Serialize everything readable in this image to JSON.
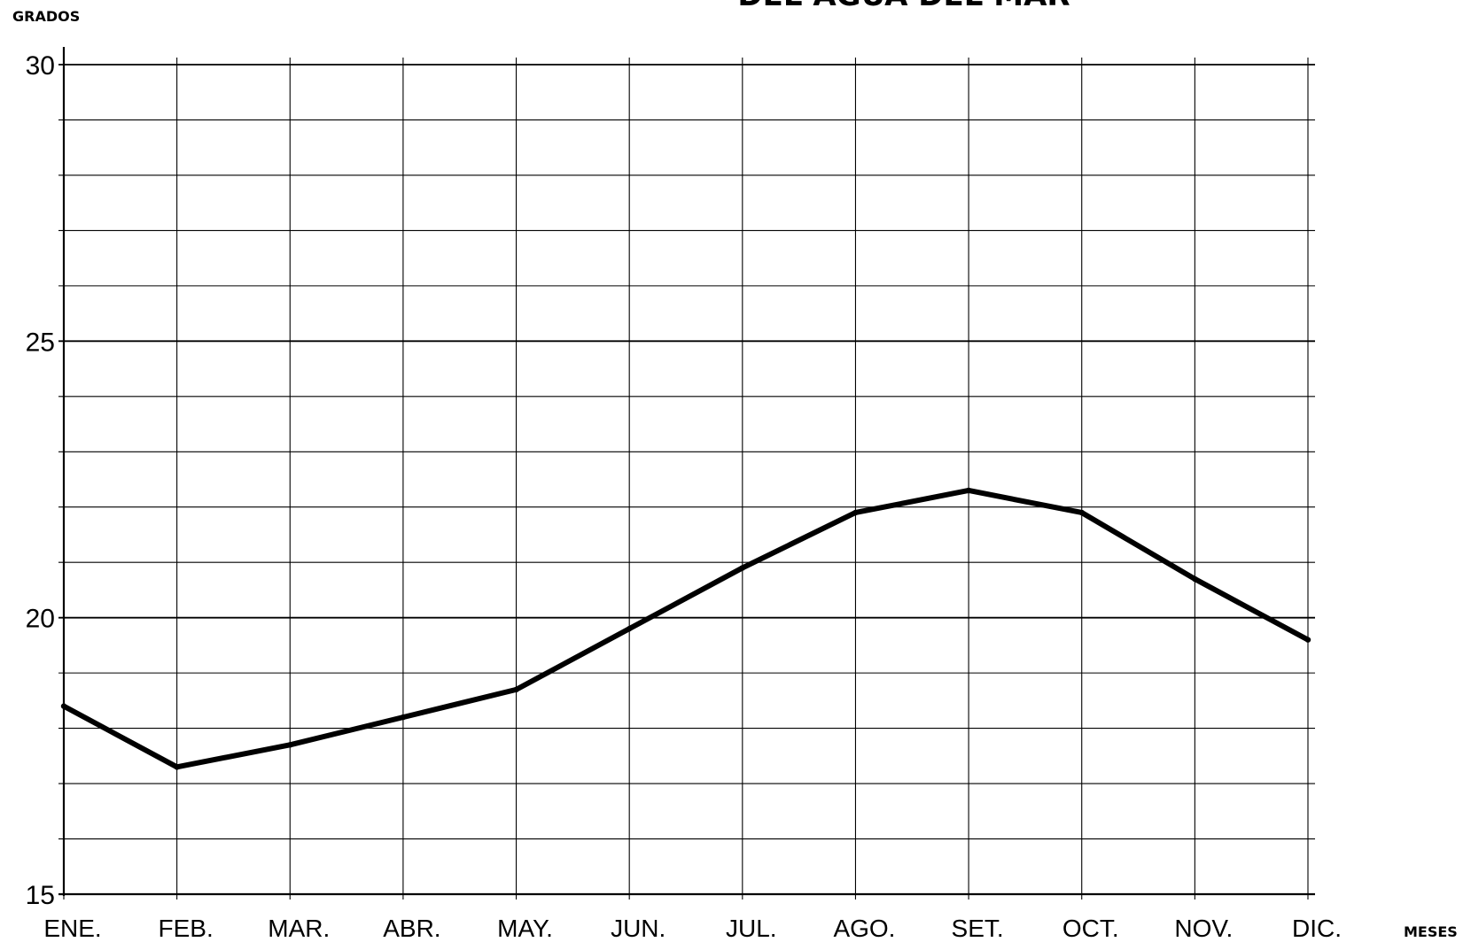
{
  "chart_data": {
    "type": "line",
    "title": "DEL AGUA DEL MAR",
    "ylabel": "GRADOS",
    "xlabel": "MESES",
    "categories": [
      "ENE.",
      "FEB.",
      "MAR.",
      "ABR.",
      "MAY.",
      "JUN.",
      "JUL.",
      "AGO.",
      "SET.",
      "OCT.",
      "NOV.",
      "DIC."
    ],
    "values": [
      18.4,
      17.3,
      17.7,
      18.2,
      18.7,
      19.8,
      20.9,
      21.9,
      22.3,
      21.9,
      20.7,
      19.6
    ],
    "ylim": [
      15,
      30
    ],
    "yticks": [
      15,
      20,
      25,
      30
    ],
    "ytick_labels": [
      "15",
      "20",
      "25",
      "30"
    ],
    "grid": true,
    "line_color": "#000000"
  }
}
